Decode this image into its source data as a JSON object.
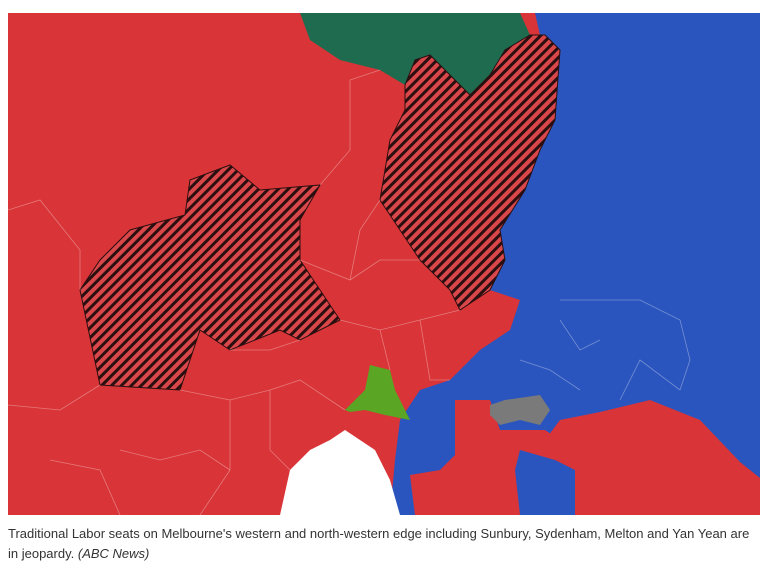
{
  "caption": {
    "text": "Traditional Labor seats on Melbourne's western and north-western edge including Sunbury, Sydenham, Melton and Yan Yean are in jeopardy.",
    "credit": "(ABC News)"
  }
}
